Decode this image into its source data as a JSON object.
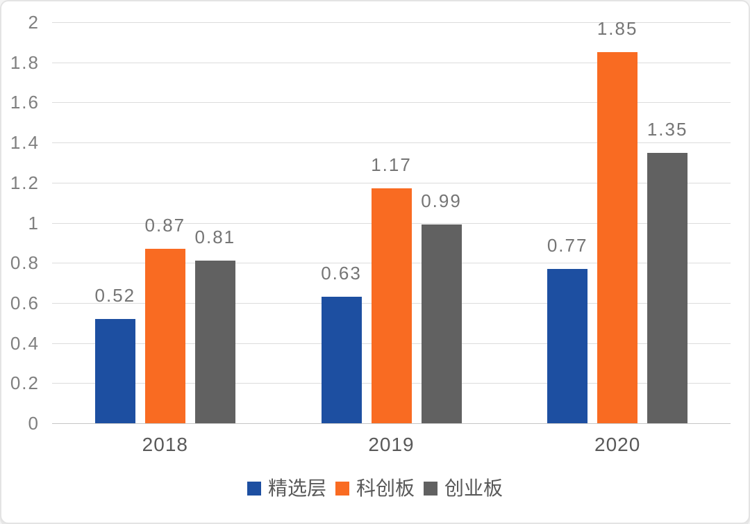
{
  "chart_data": {
    "type": "bar",
    "categories": [
      "2018",
      "2019",
      "2020"
    ],
    "series": [
      {
        "name": "精选层",
        "color": "#1d4fa1",
        "values": [
          0.52,
          0.63,
          0.77
        ]
      },
      {
        "name": "科创板",
        "color": "#f96b22",
        "values": [
          0.87,
          1.17,
          1.85
        ]
      },
      {
        "name": "创业板",
        "color": "#616161",
        "values": [
          0.81,
          0.99,
          1.35
        ]
      }
    ],
    "data_labels": [
      [
        "0.52",
        "0.63",
        "0.77"
      ],
      [
        "0.87",
        "1.17",
        "1.85"
      ],
      [
        "0.81",
        "0.99",
        "1.35"
      ]
    ],
    "title": "",
    "xlabel": "",
    "ylabel": "",
    "ylim": [
      0,
      2
    ],
    "yticks": [
      "0",
      "0.2",
      "0.4",
      "0.6",
      "0.8",
      "1",
      "1.2",
      "1.4",
      "1.6",
      "1.8",
      "2"
    ],
    "grid": true,
    "legend_position": "bottom"
  },
  "colors": {
    "gridline": "#dcdcdc",
    "baseline": "#c6c6c6",
    "ytick_text": "#7f7f7f",
    "bar_label_text": "#757575",
    "xtick_text": "#595959",
    "legend_text": "#595959",
    "card_border": "#e3e3e3",
    "background": "#ffffff"
  }
}
